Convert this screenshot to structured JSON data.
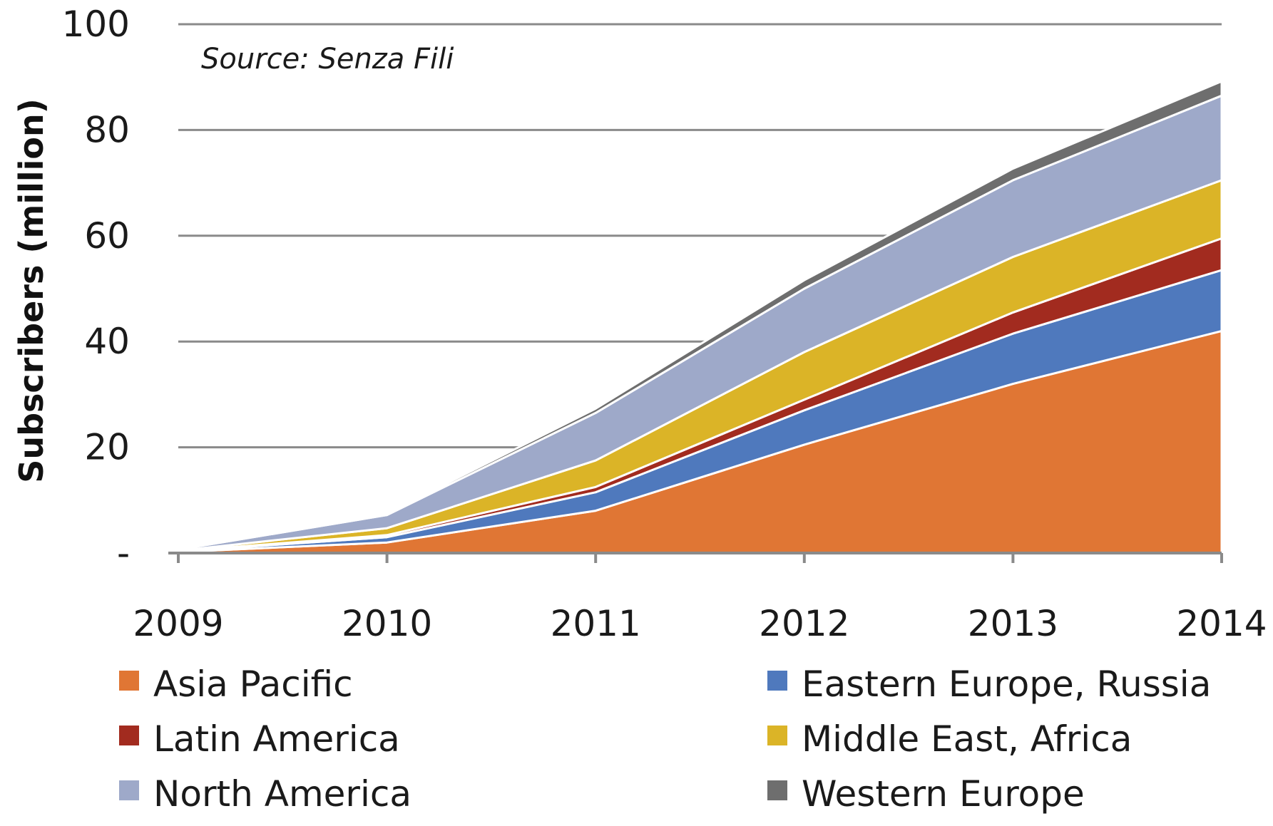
{
  "chart_data": {
    "type": "area",
    "stacked": true,
    "ylabel": "Subscribers (million)",
    "annotation": "Source: Senza Fili",
    "x": [
      "2009",
      "2010",
      "2011",
      "2012",
      "2013",
      "2014"
    ],
    "ylim": [
      0,
      100
    ],
    "yticks": [
      {
        "value": 0,
        "label": "-"
      },
      {
        "value": 20,
        "label": "20"
      },
      {
        "value": 40,
        "label": "40"
      },
      {
        "value": 60,
        "label": "60"
      },
      {
        "value": 80,
        "label": "80"
      },
      {
        "value": 100,
        "label": "100"
      }
    ],
    "grid": true,
    "legend_position": "bottom",
    "series": [
      {
        "name": "Asia Pacific",
        "color": "#e07634",
        "values": [
          0.2,
          2,
          8,
          20.5,
          32,
          42
        ]
      },
      {
        "name": "Eastern Europe, Russia",
        "color": "#4f79bd",
        "values": [
          0.1,
          1,
          3.5,
          6.5,
          9.5,
          11.5
        ]
      },
      {
        "name": "Latin America",
        "color": "#a22b1f",
        "values": [
          0.05,
          0.4,
          1,
          2,
          4,
          6
        ]
      },
      {
        "name": "Middle East, Africa",
        "color": "#dbb427",
        "values": [
          0.1,
          1.3,
          5,
          9,
          10.5,
          11
        ]
      },
      {
        "name": "North America",
        "color": "#9ea9c9",
        "values": [
          0.2,
          2.5,
          9,
          12,
          14.5,
          16
        ]
      },
      {
        "name": "Western Europe",
        "color": "#6e6e6e",
        "values": [
          0.05,
          0.3,
          0.8,
          1.6,
          2.2,
          2.7
        ]
      }
    ],
    "legend_order": [
      "Asia Pacific",
      "Eastern Europe, Russia",
      "Latin America",
      "Middle East, Africa",
      "North America",
      "Western Europe"
    ]
  }
}
